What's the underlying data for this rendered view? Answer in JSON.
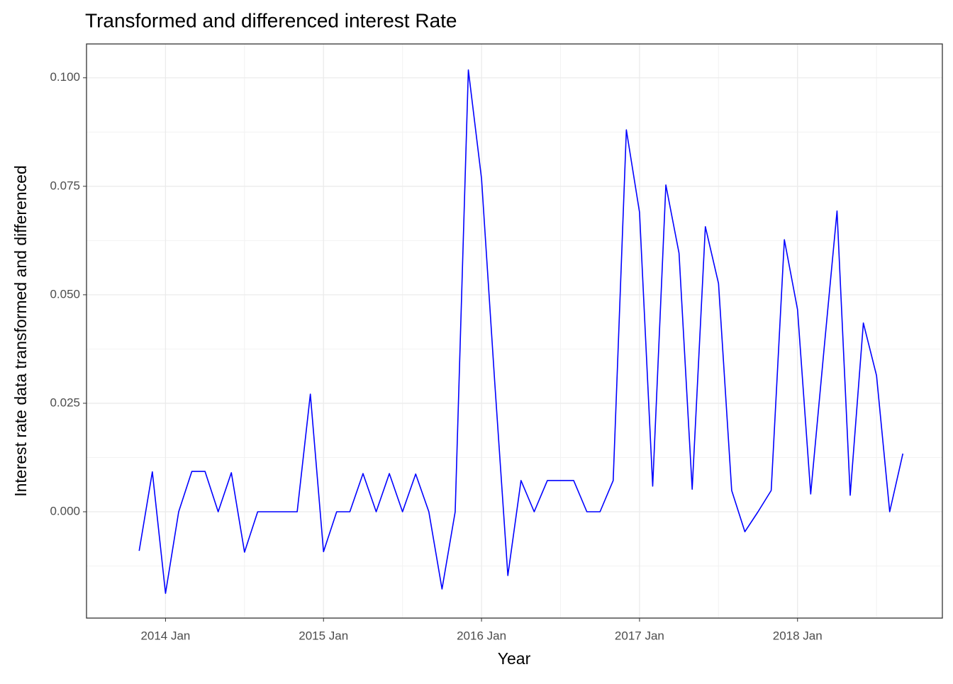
{
  "chart_data": {
    "type": "line",
    "title": "Transformed and differenced interest Rate",
    "x_label": "Year",
    "y_label": "Interest rate data transformed and differenced",
    "x": [
      "2013 Nov",
      "2013 Dec",
      "2014 Jan",
      "2014 Feb",
      "2014 Mar",
      "2014 Apr",
      "2014 May",
      "2014 Jun",
      "2014 Jul",
      "2014 Aug",
      "2014 Sep",
      "2014 Oct",
      "2014 Nov",
      "2014 Dec",
      "2015 Jan",
      "2015 Feb",
      "2015 Mar",
      "2015 Apr",
      "2015 May",
      "2015 Jun",
      "2015 Jul",
      "2015 Aug",
      "2015 Sep",
      "2015 Oct",
      "2015 Nov",
      "2015 Dec",
      "2016 Jan",
      "2016 Feb",
      "2016 Mar",
      "2016 Apr",
      "2016 May",
      "2016 Jun",
      "2016 Jul",
      "2016 Aug",
      "2016 Sep",
      "2016 Oct",
      "2016 Nov",
      "2016 Dec",
      "2017 Jan",
      "2017 Feb",
      "2017 Mar",
      "2017 Apr",
      "2017 May",
      "2017 Jun",
      "2017 Jul",
      "2017 Aug",
      "2017 Sep",
      "2017 Oct",
      "2017 Nov",
      "2017 Dec",
      "2018 Jan",
      "2018 Feb",
      "2018 Mar",
      "2018 Apr",
      "2018 May",
      "2018 Jun",
      "2018 Jul",
      "2018 Aug",
      "2018 Sep"
    ],
    "series": [
      {
        "color": "#0000ff",
        "values": [
          -0.009,
          0.0092,
          -0.0188,
          0,
          0.0093,
          0.0093,
          0,
          0.009,
          -0.0093,
          0,
          0,
          0,
          0,
          0.0271,
          -0.0092,
          0,
          0,
          0.0088,
          0,
          0.0088,
          0,
          0.0087,
          0,
          -0.0178,
          0,
          0.1018,
          0.0768,
          0.03,
          -0.0147,
          0.0072,
          0,
          0.0072,
          0.0072,
          0.0072,
          0,
          0,
          0.0072,
          0.088,
          0.069,
          0.0059,
          0.0753,
          0.0596,
          0.0052,
          0.0657,
          0.0526,
          0.0049,
          -0.0046,
          0,
          0.0049,
          0.0627,
          0.0466,
          0.0041,
          0.037,
          0.0693,
          0.0038,
          0.0435,
          0.0314,
          0,
          0.0134
        ]
      }
    ],
    "xlim": [
      "2013 Jul",
      "2018 Dec"
    ],
    "xticks": [
      "2014 Jan",
      "2015 Jan",
      "2016 Jan",
      "2017 Jan",
      "2018 Jan"
    ],
    "ylim": [
      -0.0245,
      0.1078
    ],
    "yticks": [
      {
        "value": 0,
        "label": "0.000"
      },
      {
        "value": 0.025,
        "label": "0.025"
      },
      {
        "value": 0.05,
        "label": "0.050"
      },
      {
        "value": 0.075,
        "label": "0.075"
      },
      {
        "value": 0.1,
        "label": "0.100"
      }
    ],
    "grid": true
  }
}
